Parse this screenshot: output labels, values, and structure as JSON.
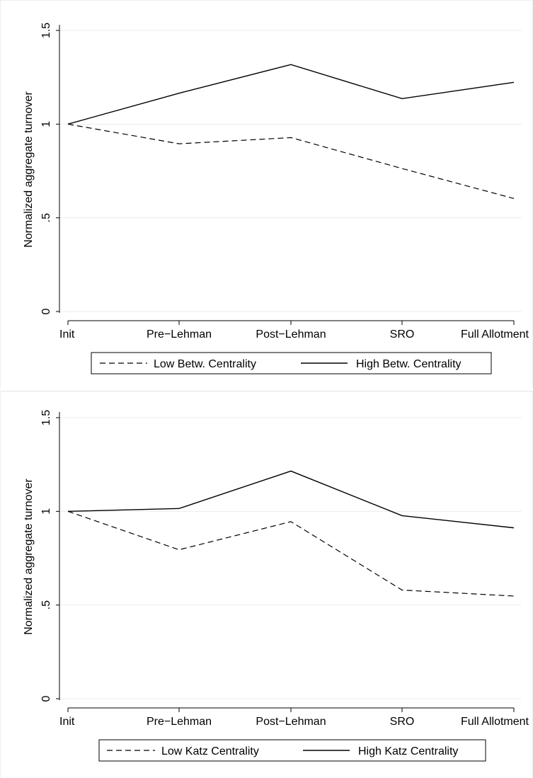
{
  "chart_data": [
    {
      "type": "line",
      "categories": [
        "Init",
        "Pre−Lehman",
        "Post−Lehman",
        "SRO",
        "Full Allotment"
      ],
      "ylabel": "Normalized aggregate turnover",
      "xlabel": "",
      "ylim": [
        0,
        1.5
      ],
      "yticks": [
        0,
        0.5,
        1,
        1.5
      ],
      "ytick_labels": [
        "0",
        ".5",
        "1",
        "1.5"
      ],
      "grid": true,
      "legend_position": "bottom",
      "series": [
        {
          "name": "Low Betw. Centrality",
          "style": "dashed",
          "values": [
            1.0,
            0.895,
            0.928,
            0.763,
            0.603
          ]
        },
        {
          "name": "High Betw. Centrality",
          "style": "solid",
          "values": [
            1.0,
            1.165,
            1.318,
            1.136,
            1.223
          ]
        }
      ]
    },
    {
      "type": "line",
      "categories": [
        "Init",
        "Pre−Lehman",
        "Post−Lehman",
        "SRO",
        "Full Allotment"
      ],
      "ylabel": "Normalized aggregate turnover",
      "xlabel": "",
      "ylim": [
        0,
        1.5
      ],
      "yticks": [
        0,
        0.5,
        1,
        1.5
      ],
      "ytick_labels": [
        "0",
        ".5",
        "1",
        "1.5"
      ],
      "grid": true,
      "legend_position": "bottom",
      "series": [
        {
          "name": "Low Katz Centrality",
          "style": "dashed",
          "values": [
            1.0,
            0.795,
            0.945,
            0.58,
            0.548
          ]
        },
        {
          "name": "High Katz Centrality",
          "style": "solid",
          "values": [
            1.0,
            1.015,
            1.215,
            0.977,
            0.912
          ]
        }
      ]
    }
  ]
}
